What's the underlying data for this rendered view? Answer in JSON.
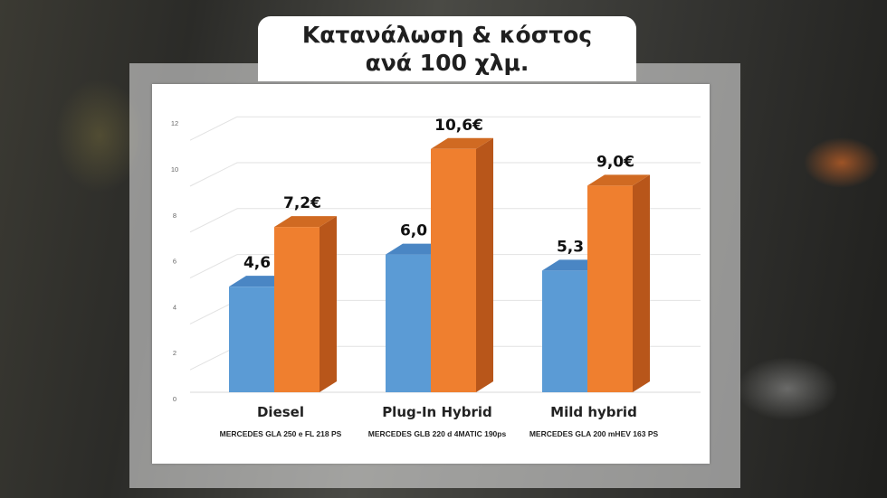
{
  "title": {
    "line1": "Κατανάλωση & κόστος",
    "line2": "ανά 100 χλμ."
  },
  "colors": {
    "consumption": "#5b9bd5",
    "consumption_side": "#3f7ab8",
    "consumption_top": "#4a86c4",
    "cost": "#ef7f2f",
    "cost_side": "#b8561a",
    "cost_top": "#d06a22"
  },
  "chart_data": {
    "type": "bar",
    "categories": [
      "Diesel",
      "Plug-In Hybrid",
      "Mild hybrid"
    ],
    "subcategories": [
      "MERCEDES GLA 250 e FL 218 PS",
      "MERCEDES GLB 220 d 4MATIC 190ps",
      "MERCEDES GLA 200 mHEV 163 PS"
    ],
    "series": [
      {
        "values": [
          4.6,
          6.0,
          5.3
        ],
        "labels": [
          "4,6",
          "6,0",
          "5,3"
        ]
      },
      {
        "values": [
          7.2,
          10.6,
          9.0
        ],
        "labels": [
          "7,2€",
          "10,6€",
          "9,0€"
        ]
      }
    ],
    "y_ticks": [
      "0",
      "2",
      "4",
      "6",
      "8",
      "10",
      "12"
    ],
    "ylim": [
      0,
      12
    ],
    "grid": true,
    "bar_style": "3d"
  }
}
